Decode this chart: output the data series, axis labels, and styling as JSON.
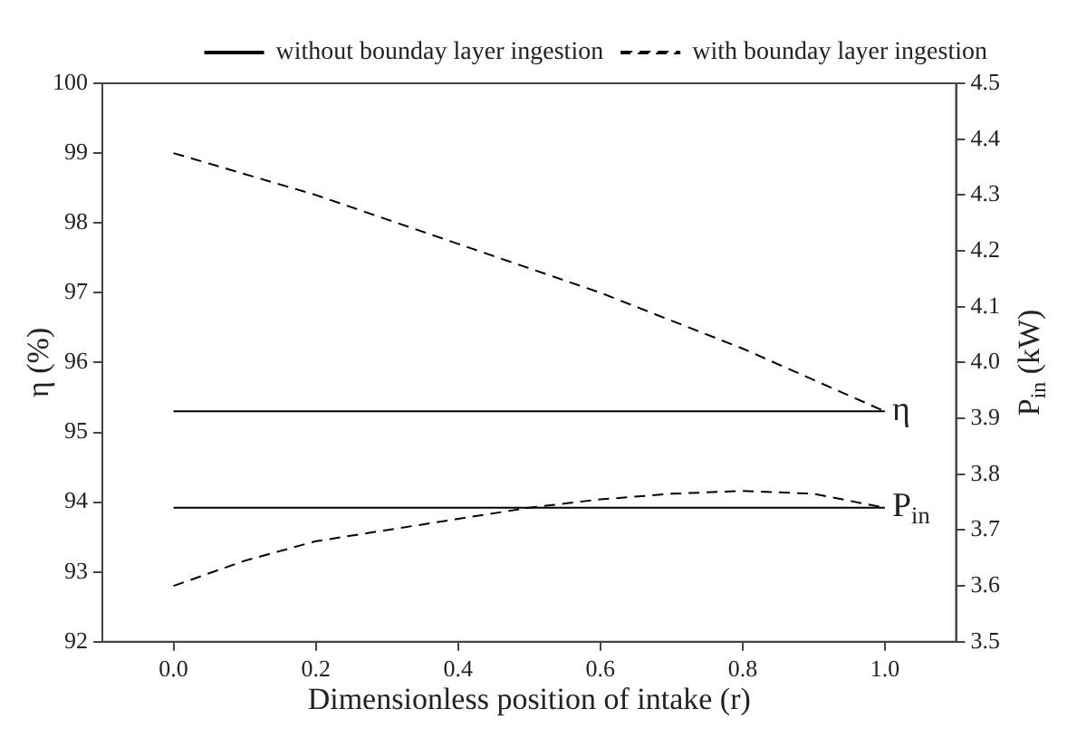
{
  "chart_data": {
    "type": "line",
    "xlabel": "Dimensionless position of intake (r)",
    "ylabel": "η (%)",
    "y2label": "P$_{in}$ (kW)",
    "x": [
      0,
      0.1,
      0.2,
      0.3,
      0.4,
      0.5,
      0.6,
      0.7,
      0.8,
      0.9,
      1.0
    ],
    "series": [
      {
        "name": "without bounday layer ingestion",
        "color": "#000000",
        "line_style": "solid",
        "values": [
          95.3,
          95.3,
          95.3,
          95.3,
          95.3,
          95.3,
          95.3,
          95.3,
          95.3,
          95.3,
          95.3
        ]
      },
      {
        "name": "with bounday layer ingestion",
        "color": "#000000",
        "line_style": "dashed",
        "values": [
          99.0,
          98.7,
          98.4,
          98.05,
          97.7,
          97.35,
          97.0,
          96.6,
          96.2,
          95.75,
          95.3
        ]
      },
      {
        "color": "#000000",
        "line_style": "solid",
        "axis": "y2",
        "values": [
          3.74,
          3.74,
          3.74,
          3.74,
          3.74,
          3.74,
          3.74,
          3.74,
          3.74,
          3.74,
          3.74
        ]
      },
      {
        "color": "#000000",
        "line_style": "dashed",
        "axis": "y2",
        "values": [
          3.6,
          3.645,
          3.68,
          3.7,
          3.72,
          3.74,
          3.755,
          3.765,
          3.77,
          3.765,
          3.74
        ]
      }
    ],
    "xlim": [
      -0.1,
      1.1
    ],
    "xticks": [
      {
        "value": 0,
        "label": "0.0"
      },
      0.2,
      0.4,
      0.6,
      0.8,
      {
        "value": 1,
        "label": "1.0"
      }
    ],
    "ylim": [
      92,
      100
    ],
    "yticks": [
      92,
      93,
      94,
      95,
      96,
      97,
      98,
      99,
      100
    ],
    "y2lim": [
      3.5,
      4.5
    ],
    "y2ticks": [
      3.5,
      3.6,
      3.7,
      3.8,
      3.9,
      {
        "value": 4,
        "label": "4.0"
      },
      4.1,
      4.2,
      4.3,
      4.4,
      4.5
    ],
    "annotations": [
      {
        "text": "η",
        "x": 1.0,
        "y": 95.3
      },
      {
        "text": "P$_{in}$",
        "x": 1.0,
        "y": 93.93
      }
    ],
    "legend": "top right",
    "grid": false,
    "marker": "none"
  }
}
